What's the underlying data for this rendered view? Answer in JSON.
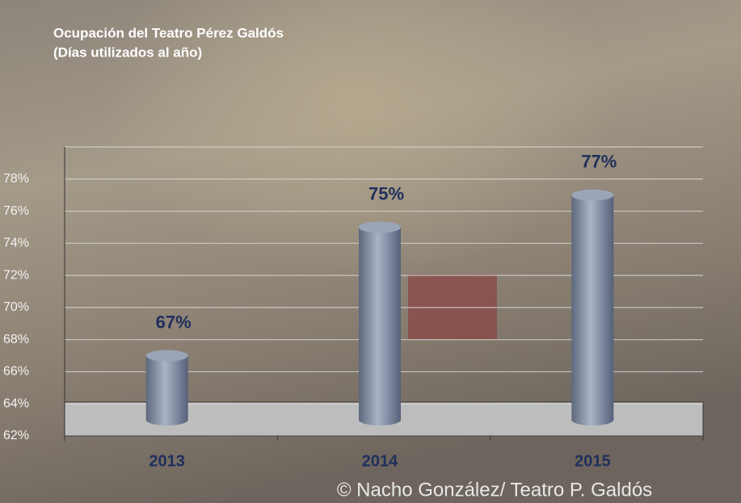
{
  "chart_data": {
    "type": "bar",
    "title": "Ocupación del Teatro Pérez Galdós",
    "subtitle": "(Días utilizados al año)",
    "categories": [
      "2013",
      "2014",
      "2015"
    ],
    "values": [
      67,
      75,
      77
    ],
    "value_labels": [
      "67%",
      "75%",
      "77%"
    ],
    "color": "#8391a8",
    "ylim": [
      62,
      80
    ],
    "yticks": [
      {
        "value": 62,
        "label": "62%"
      },
      {
        "value": 64,
        "label": "64%"
      },
      {
        "value": 66,
        "label": "66%"
      },
      {
        "value": 68,
        "label": "68%"
      },
      {
        "value": 70,
        "label": "70%"
      },
      {
        "value": 72,
        "label": "72%"
      },
      {
        "value": 74,
        "label": "74%"
      },
      {
        "value": 76,
        "label": "76%"
      },
      {
        "value": 78,
        "label": "78%"
      }
    ],
    "grid": true,
    "credit": "© Nacho González/ Teatro P. Galdós"
  }
}
